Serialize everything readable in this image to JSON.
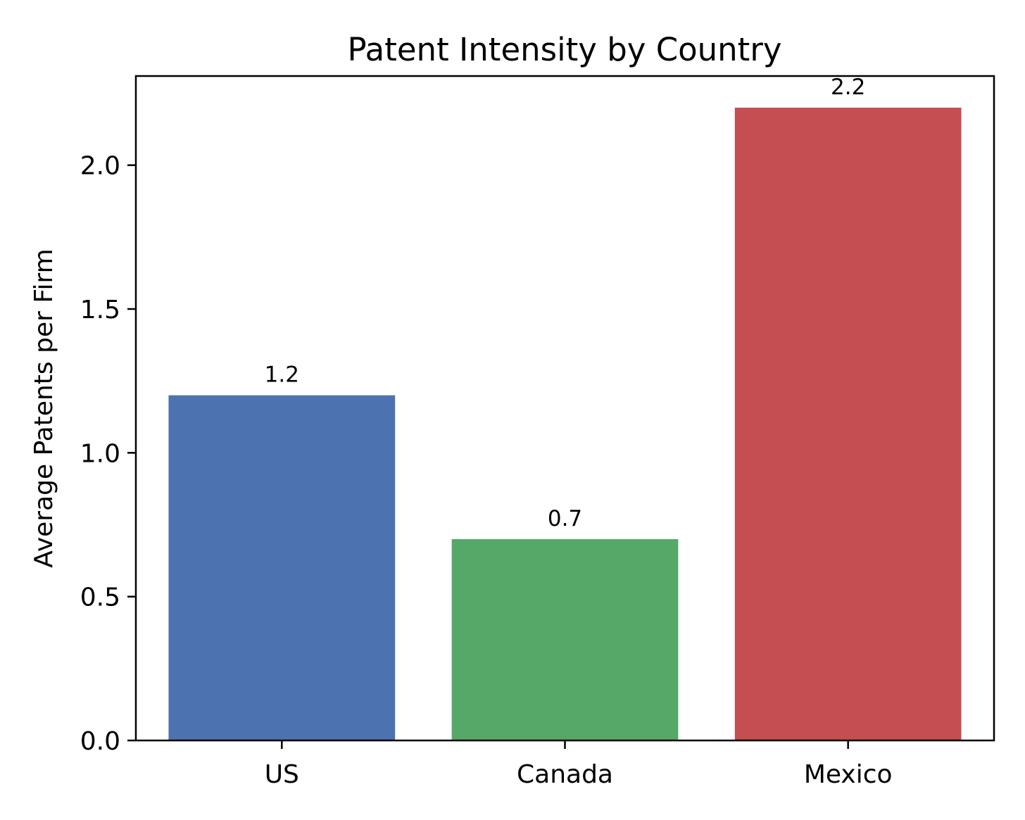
{
  "chart_data": {
    "type": "bar",
    "title": "Patent Intensity by Country",
    "xlabel": "",
    "ylabel": "Average Patents per Firm",
    "categories": [
      "US",
      "Canada",
      "Mexico"
    ],
    "values": [
      1.2,
      0.7,
      2.2
    ],
    "data_labels": [
      "1.2",
      "0.7",
      "2.2"
    ],
    "colors": [
      "#4c72b0",
      "#55a868",
      "#c44e52"
    ],
    "ylim": [
      0,
      2.31
    ],
    "yticks": [
      0.0,
      0.5,
      1.0,
      1.5,
      2.0
    ],
    "ytick_labels": [
      "0.0",
      "0.5",
      "1.0",
      "1.5",
      "2.0"
    ],
    "grid": false,
    "legend": "none"
  }
}
